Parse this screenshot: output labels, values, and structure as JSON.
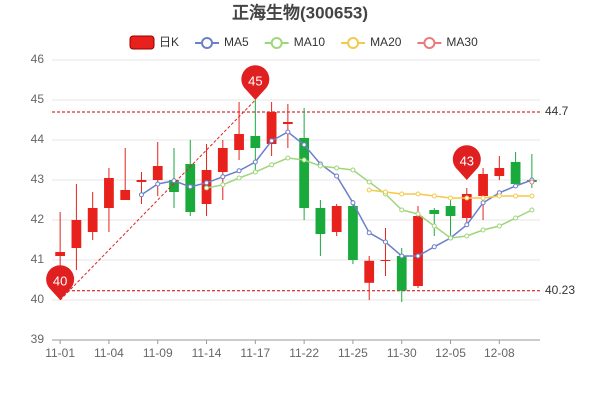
{
  "chart_data": {
    "type": "candlestick",
    "title": "正海生物(300653)",
    "categories": [
      "11-01",
      null,
      null,
      "11-04",
      null,
      null,
      "11-09",
      null,
      null,
      "11-14",
      null,
      null,
      "11-17",
      null,
      null,
      "11-22",
      null,
      null,
      "11-25",
      null,
      null,
      "11-30",
      null,
      null,
      "12-05",
      null,
      null,
      "12-08",
      null,
      null
    ],
    "series": [
      {
        "name": "日K",
        "color": "#e8211c",
        "down_color": "#1aaa3c",
        "open": [
          41.1,
          41.3,
          41.7,
          42.3,
          42.5,
          42.95,
          43.0,
          43.0,
          43.4,
          42.4,
          43.2,
          43.75,
          44.1,
          43.9,
          44.4,
          44.05,
          42.3,
          41.7,
          42.35,
          40.43,
          40.98,
          41.1,
          40.35,
          42.25,
          42.35,
          42.05,
          42.6,
          43.1,
          43.45,
          43.0
        ],
        "high": [
          42.2,
          42.9,
          42.7,
          43.3,
          43.8,
          43.2,
          43.95,
          43.8,
          44.0,
          43.9,
          44.0,
          44.95,
          45.0,
          44.95,
          44.9,
          44.8,
          42.5,
          42.4,
          42.5,
          41.1,
          41.8,
          41.3,
          42.35,
          42.3,
          42.5,
          42.8,
          43.3,
          43.6,
          43.7,
          43.65
        ],
        "low": [
          40.7,
          40.75,
          41.5,
          41.7,
          42.5,
          42.4,
          42.6,
          42.3,
          42.1,
          42.1,
          42.5,
          43.5,
          43.2,
          43.6,
          43.8,
          42.0,
          41.1,
          41.6,
          40.9,
          40.0,
          40.6,
          39.95,
          40.3,
          41.6,
          41.6,
          41.9,
          42.0,
          43.0,
          42.8,
          42.8
        ],
        "close": [
          41.2,
          42.0,
          42.3,
          43.05,
          42.75,
          43.0,
          43.35,
          42.7,
          42.2,
          43.25,
          43.8,
          44.15,
          43.8,
          44.7,
          44.45,
          42.3,
          41.65,
          42.35,
          41.0,
          40.98,
          41.0,
          40.23,
          42.1,
          42.15,
          42.1,
          42.65,
          43.15,
          43.3,
          42.9,
          42.95
        ]
      }
    ],
    "lines": [
      {
        "name": "MA5",
        "color": "#6b80c8",
        "values": [
          null,
          null,
          null,
          null,
          null,
          42.63,
          42.9,
          42.98,
          42.83,
          42.93,
          43.08,
          43.23,
          43.45,
          43.98,
          44.2,
          43.88,
          43.4,
          43.1,
          42.43,
          41.68,
          41.45,
          41.1,
          41.1,
          41.33,
          41.55,
          41.88,
          42.43,
          42.68,
          42.85,
          43.0
        ]
      },
      {
        "name": "MA10",
        "color": "#9fd67c",
        "values": [
          null,
          null,
          null,
          null,
          null,
          null,
          null,
          null,
          null,
          42.8,
          42.88,
          43.05,
          43.2,
          43.38,
          43.55,
          43.5,
          43.35,
          43.3,
          43.25,
          42.95,
          42.65,
          42.25,
          42.15,
          41.85,
          41.55,
          41.6,
          41.75,
          41.85,
          42.05,
          42.25
        ]
      },
      {
        "name": "MA20",
        "color": "#f4c94c",
        "values": [
          null,
          null,
          null,
          null,
          null,
          null,
          null,
          null,
          null,
          null,
          null,
          null,
          null,
          null,
          null,
          null,
          null,
          null,
          null,
          42.75,
          42.7,
          42.65,
          42.65,
          42.6,
          42.55,
          42.55,
          42.55,
          42.6,
          42.6,
          42.6
        ]
      },
      {
        "name": "MA30",
        "color": "#e87b7b",
        "values": [
          null,
          null,
          null,
          null,
          null,
          null,
          null,
          null,
          null,
          null,
          null,
          null,
          null,
          null,
          null,
          null,
          null,
          null,
          null,
          null,
          null,
          null,
          null,
          null,
          null,
          null,
          null,
          null,
          null,
          42.95
        ]
      }
    ],
    "ylim": [
      39,
      46
    ],
    "yticks": [
      39,
      40,
      41,
      42,
      43,
      44,
      45,
      46
    ],
    "grid": true,
    "reference_lines": [
      {
        "value": 44.7
      },
      {
        "value": 40.23
      }
    ],
    "markers": [
      {
        "index": 0,
        "value": 40
      },
      {
        "index": 12,
        "value": 45
      },
      {
        "index": 25,
        "value": 43
      }
    ]
  }
}
